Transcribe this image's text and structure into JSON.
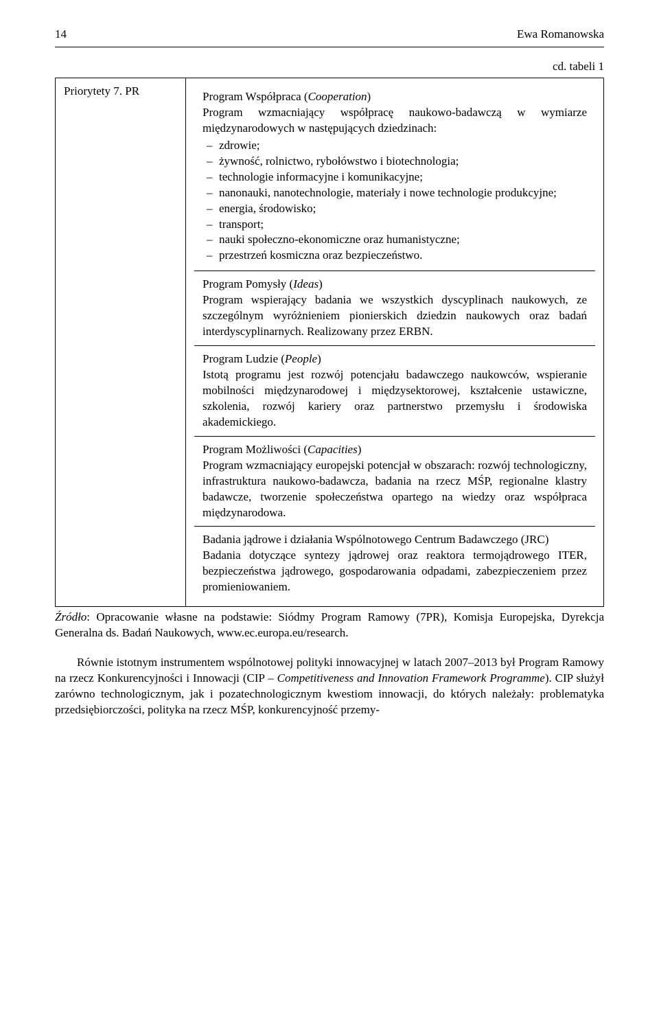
{
  "header": {
    "page_number": "14",
    "author": "Ewa Romanowska"
  },
  "cd_label": "cd. tabeli 1",
  "left_label": "Priorytety 7. PR",
  "cells": {
    "coop": {
      "title_plain": "Program Współpraca (",
      "title_italic": "Cooperation",
      "title_close": ")",
      "intro": "Program wzmacniający współpracę naukowo-badawczą w wymiarze międzynarodowych w następujących dziedzinach:",
      "bullets": [
        "zdrowie;",
        "żywność, rolnictwo, rybołówstwo i biotechnologia;",
        "technologie informacyjne i komunikacyjne;",
        "nanonauki, nanotechnologie, materiały i nowe technologie produkcyjne;",
        "energia, środowisko;",
        "transport;",
        "nauki społeczno-ekonomiczne oraz humanistyczne;",
        "przestrzeń kosmiczna oraz bezpieczeństwo."
      ]
    },
    "ideas": {
      "title_plain": "Program Pomysły (",
      "title_italic": "Ideas",
      "title_close": ")",
      "body": "Program wspierający badania we wszystkich dyscyplinach naukowych, ze szczególnym wyróżnieniem pionierskich dziedzin naukowych oraz badań interdyscyplinarnych. Realizowany przez ERBN."
    },
    "people": {
      "title_plain": "Program Ludzie (",
      "title_italic": "People",
      "title_close": ")",
      "body": "Istotą programu jest rozwój potencjału badawczego naukowców, wspieranie mobilności międzynarodowej i międzysektorowej, kształcenie ustawiczne, szkolenia, rozwój kariery oraz partnerstwo przemysłu i środowiska akademickiego."
    },
    "capacities": {
      "title_plain": "Program Możliwości (",
      "title_italic": "Capacities",
      "title_close": ")",
      "body": "Program wzmacniający europejski potencjał w obszarach: rozwój technologiczny, infrastruktura naukowo-badawcza, badania na rzecz MŚP, regionalne klastry badawcze, tworzenie społeczeństwa opartego na wiedzy oraz współpraca międzynarodowa."
    },
    "jrc": {
      "line1_a": "Badania jądrowe i działania Wspólnotowego Centrum Badawczego (",
      "line1_italic": "JRC",
      "line1_b": ")",
      "body": "Badania dotyczące syntezy jądrowej oraz reaktora termojądrowego ITER, bezpieczeństwa jądrowego, gospodarowania odpadami, zabezpieczeniem przez promieniowaniem."
    }
  },
  "source": {
    "prefix_italic": "Źródło",
    "text": ": Opracowanie własne na podstawie: Siódmy Program Ramowy (7PR), Komisja Europejska, Dyrekcja Generalna ds. Badań Naukowych, www.ec.europa.eu/research."
  },
  "paragraph": {
    "p1": "Równie istotnym instrumentem wspólnotowej polityki innowacyjnej w latach 2007–2013 był Program Ramowy na rzecz Konkurencyjności i Innowacji (CIP – ",
    "p1_italic": "Competitiveness and Innovation Framework Programme",
    "p2": "). CIP służył zarówno technologicznym, jak i pozatechnologicznym kwestiom innowacji, do których należały: problematyka przedsiębiorczości, polityka na rzecz MŚP, konkurencyjność przemy-"
  }
}
